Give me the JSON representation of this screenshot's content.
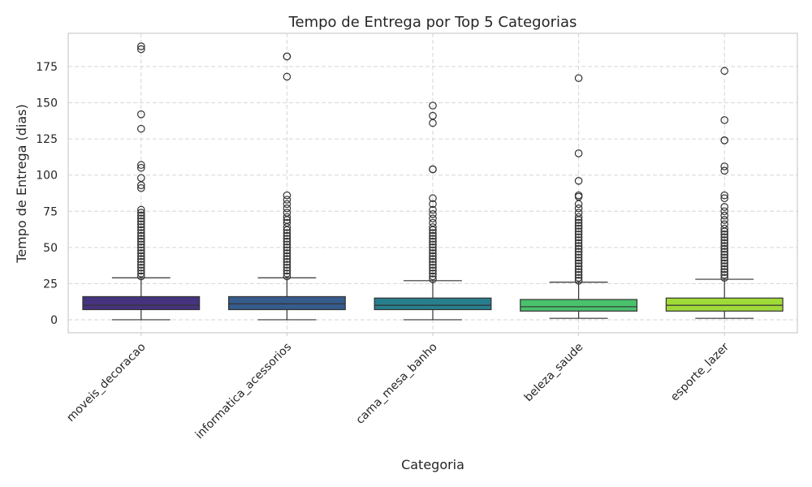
{
  "chart_data": {
    "type": "box",
    "title": "Tempo de Entrega por Top 5 Categorias",
    "xlabel": "Categoria",
    "ylabel": "Tempo de Entrega (dias)",
    "ylim": [
      -9,
      198
    ],
    "yticks": [
      0,
      25,
      50,
      75,
      100,
      125,
      150,
      175
    ],
    "grid": true,
    "categories": [
      "moveis_decoracao",
      "informatica_acessorios",
      "cama_mesa_banho",
      "beleza_saude",
      "esporte_lazer"
    ],
    "colors": [
      "#46337e",
      "#365c8d",
      "#277f8e",
      "#4ac16d",
      "#a0da39"
    ],
    "boxes": [
      {
        "min": 0,
        "q1": 7,
        "median": 10,
        "q3": 16,
        "max": 29,
        "outliers": [
          189,
          187,
          142,
          132,
          107,
          105,
          98,
          93,
          91,
          76,
          74,
          72,
          70,
          68,
          66,
          64,
          62,
          60,
          58,
          56,
          54,
          52,
          50,
          48,
          46,
          44,
          42,
          40,
          38,
          36,
          34,
          32,
          30
        ]
      },
      {
        "min": 0,
        "q1": 7,
        "median": 11,
        "q3": 16,
        "max": 29,
        "outliers": [
          182,
          182,
          168,
          86,
          83,
          80,
          77,
          74,
          71,
          69,
          67,
          64,
          62,
          60,
          58,
          56,
          54,
          52,
          50,
          48,
          46,
          44,
          42,
          40,
          38,
          36,
          34,
          32,
          30
        ]
      },
      {
        "min": 0,
        "q1": 7,
        "median": 10,
        "q3": 15,
        "max": 27,
        "outliers": [
          148,
          141,
          136,
          104,
          104,
          84,
          80,
          76,
          73,
          70,
          67,
          64,
          62,
          60,
          58,
          56,
          54,
          52,
          50,
          48,
          46,
          44,
          42,
          40,
          38,
          36,
          34,
          32,
          30,
          28
        ]
      },
      {
        "min": 1,
        "q1": 6,
        "median": 9,
        "q3": 14,
        "max": 26,
        "outliers": [
          167,
          115,
          96,
          86,
          85,
          80,
          77,
          74,
          71,
          69,
          67,
          65,
          63,
          61,
          59,
          57,
          55,
          53,
          51,
          49,
          47,
          45,
          43,
          41,
          39,
          37,
          35,
          33,
          31,
          29,
          27
        ]
      },
      {
        "min": 1,
        "q1": 6,
        "median": 10,
        "q3": 15,
        "max": 28,
        "outliers": [
          172,
          138,
          124,
          124,
          106,
          103,
          86,
          84,
          78,
          75,
          72,
          69,
          66,
          63,
          61,
          59,
          57,
          55,
          53,
          51,
          49,
          47,
          45,
          43,
          41,
          39,
          37,
          35,
          33,
          31,
          29
        ]
      }
    ]
  }
}
